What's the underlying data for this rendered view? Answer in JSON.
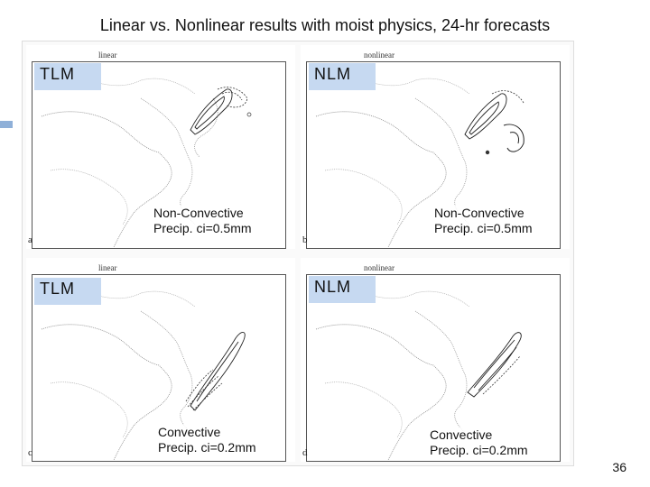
{
  "title": "Linear vs. Nonlinear results with moist physics, 24-hr forecasts",
  "panels": [
    {
      "caption": "linear",
      "letter": "a",
      "tag": "TLM",
      "annot_line1": "Non-Convective",
      "annot_line2": "Precip. ci=0.5mm"
    },
    {
      "caption": "nonlinear",
      "letter": "b",
      "tag": "NLM",
      "annot_line1": "Non-Convective",
      "annot_line2": "Precip. ci=0.5mm"
    },
    {
      "caption": "linear",
      "letter": "c",
      "tag": "TLM",
      "annot_line1": "Convective",
      "annot_line2": "Precip. ci=0.2mm"
    },
    {
      "caption": "nonlinear",
      "letter": "d",
      "tag": "NLM",
      "annot_line1": "Convective",
      "annot_line2": "Precip. ci=0.2mm"
    }
  ],
  "page_number": "36"
}
